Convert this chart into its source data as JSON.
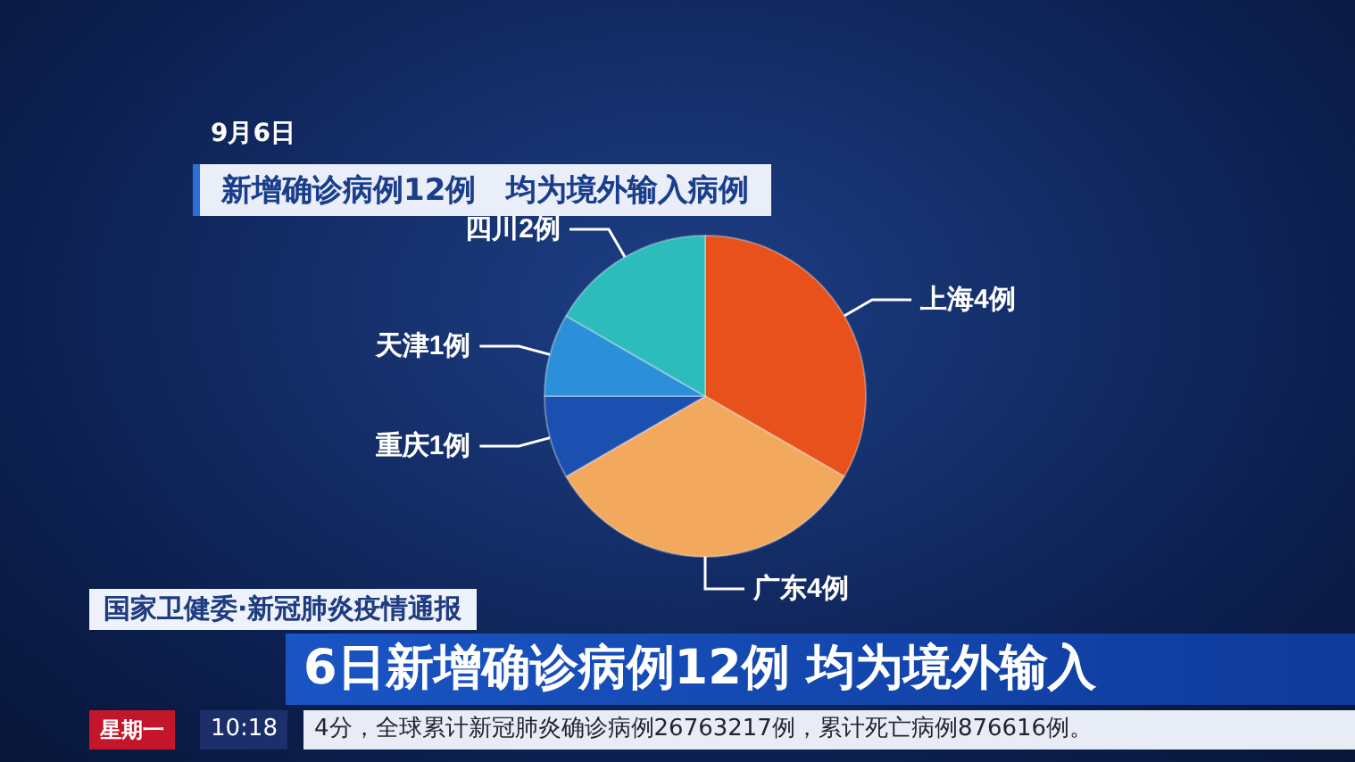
{
  "chart_data": {
    "type": "pie",
    "title": "新增确诊病例12例　均为境外输入病例",
    "subtitle": "9月6日",
    "categories": [
      "上海4例",
      "广东4例",
      "重庆1例",
      "天津1例",
      "四川2例"
    ],
    "values": [
      4,
      4,
      1,
      1,
      2
    ],
    "colors": [
      "#e8501c",
      "#f2a95e",
      "#1b4fb0",
      "#2b90d9",
      "#2cbcbc"
    ],
    "legend": false,
    "annotations": [
      "国家卫健委·新冠肺炎疫情通报",
      "6日新增确诊病例12例 均为境外输入",
      "星期一",
      "10:18",
      "4分，全球累计新冠肺炎确诊病例26763217例，累计死亡病例876616例。"
    ]
  }
}
